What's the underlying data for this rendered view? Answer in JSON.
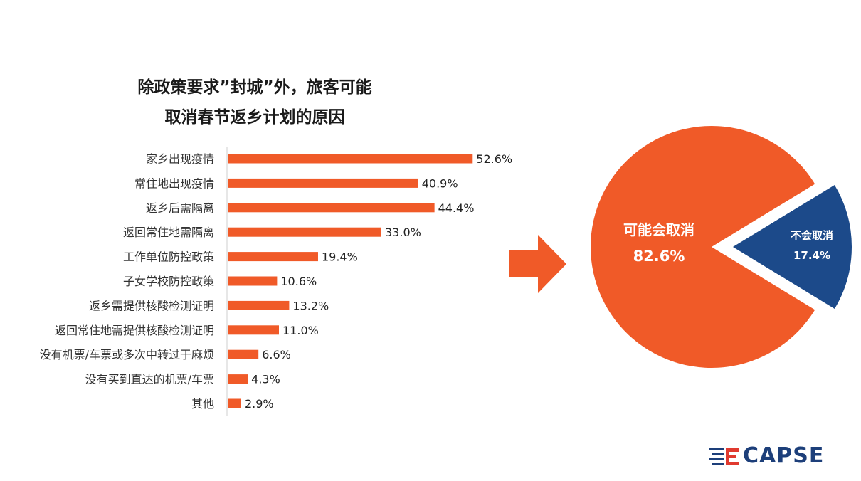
{
  "title": {
    "line1": "除政策要求”封城”外，旅客可能",
    "line2": "取消春节返乡计划的原因"
  },
  "colors": {
    "bar": "#f05a28",
    "pie_main": "#f05a28",
    "pie_secondary": "#1c4a8a",
    "arrow": "#f05a28",
    "logo_blue": "#1d3f7a",
    "logo_red": "#e03a2f"
  },
  "chart_data": [
    {
      "type": "bar",
      "orientation": "horizontal",
      "categories": [
        "家乡出现疫情",
        "常住地出现疫情",
        "返乡后需隔离",
        "返回常住地需隔离",
        "工作单位防控政策",
        "子女学校防控政策",
        "返乡需提供核酸检测证明",
        "返回常住地需提供核酸检测证明",
        "没有机票/车票或多次中转过于麻烦",
        "没有买到直达的机票/车票",
        "其他"
      ],
      "values": [
        52.6,
        40.9,
        44.4,
        33.0,
        19.4,
        10.6,
        13.2,
        11.0,
        6.6,
        4.3,
        2.9
      ],
      "value_labels": [
        "52.6%",
        "40.9%",
        "44.4%",
        "33.0%",
        "19.4%",
        "10.6%",
        "13.2%",
        "11.0%",
        "6.6%",
        "4.3%",
        "2.9%"
      ],
      "unit": "%",
      "xlim": [
        0,
        55
      ],
      "grid": false
    },
    {
      "type": "pie",
      "slices": [
        {
          "label": "可能会取消",
          "value": 82.6,
          "value_label": "82.6%",
          "exploded": false
        },
        {
          "label": "不会取消",
          "value": 17.4,
          "value_label": "17.4%",
          "exploded": true
        }
      ]
    }
  ],
  "logo": {
    "text": "CAPSE"
  }
}
